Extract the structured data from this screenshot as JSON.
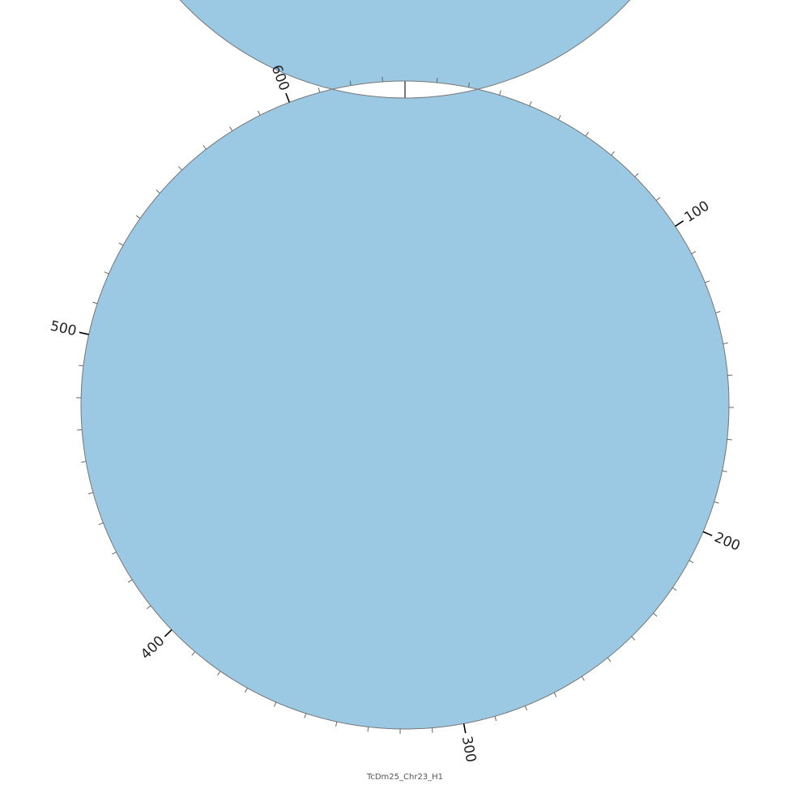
{
  "title": "TcDm25_Chr23_H1",
  "colors": {
    "ring_fill": "#9bc8e2",
    "ring_stroke": "#777777",
    "track_line": "#000000",
    "major_tick": "#000000",
    "minor_tick": "#666666"
  },
  "chart_data": {
    "type": "circular-genome",
    "chromosome": "TcDm25_Chr23_H1",
    "length": 637,
    "minor_tick_step": 10,
    "major_tick_step": 100,
    "tick_labels": [
      "100",
      "200",
      "300",
      "400",
      "500",
      "600"
    ],
    "track_groups": [
      {
        "positions": [
          0,
          10,
          20,
          30
        ]
      },
      {
        "positions": [
          100,
          110,
          120,
          130,
          140,
          150,
          160,
          170,
          180,
          190,
          200,
          210,
          220,
          230,
          240,
          250,
          260,
          270
        ]
      }
    ]
  }
}
